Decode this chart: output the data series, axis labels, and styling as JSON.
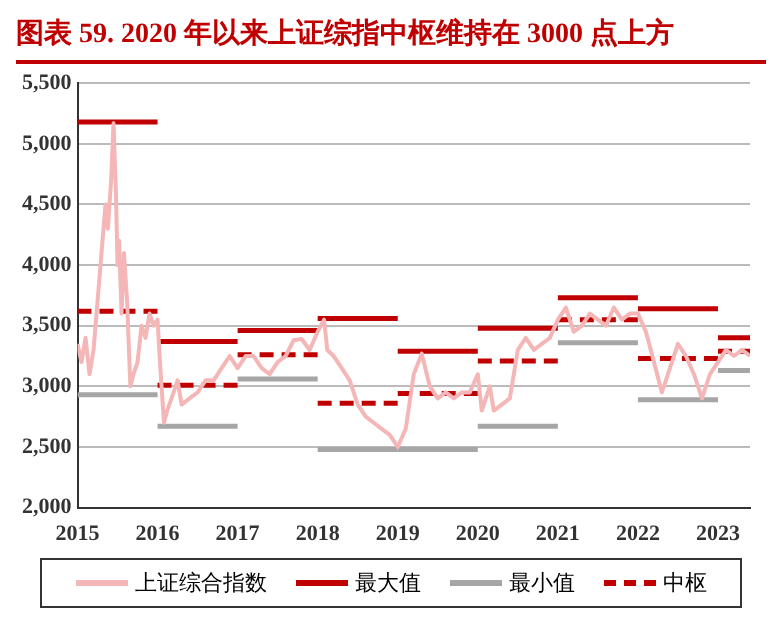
{
  "chart_data": {
    "type": "line",
    "title": "图表 59. 2020 年以来上证综指中枢维持在 3000 点上方",
    "xlim": [
      2015,
      2023.4
    ],
    "xticks": [
      2015,
      2016,
      2017,
      2018,
      2019,
      2020,
      2021,
      2022,
      2023
    ],
    "ylim": [
      2000,
      5500
    ],
    "yticks": [
      {
        "value": 2000,
        "label": "2,000"
      },
      {
        "value": 2500,
        "label": "2,500"
      },
      {
        "value": 3000,
        "label": "3,000"
      },
      {
        "value": 3500,
        "label": "3,500"
      },
      {
        "value": 4000,
        "label": "4,000"
      },
      {
        "value": 4500,
        "label": "4,500"
      },
      {
        "value": 5000,
        "label": "5,000"
      },
      {
        "value": 5500,
        "label": "5,500"
      }
    ],
    "grid": "y",
    "legend": "bottom",
    "marker": "none",
    "series": [
      {
        "name": "上证综合指数",
        "color": "#f4b6b6",
        "line_style": "solid",
        "x": [
          2015,
          2015.05,
          2015.1,
          2015.15,
          2015.2,
          2015.25,
          2015.3,
          2015.35,
          2015.38,
          2015.42,
          2015.45,
          2015.48,
          2015.5,
          2015.52,
          2015.55,
          2015.58,
          2015.62,
          2015.66,
          2015.7,
          2015.75,
          2015.8,
          2015.85,
          2015.9,
          2015.95,
          2016,
          2016.03,
          2016.08,
          2016.12,
          2016.2,
          2016.25,
          2016.3,
          2016.4,
          2016.5,
          2016.6,
          2016.7,
          2016.8,
          2016.9,
          2017,
          2017.1,
          2017.2,
          2017.3,
          2017.4,
          2017.5,
          2017.6,
          2017.7,
          2017.8,
          2017.9,
          2018,
          2018.08,
          2018.12,
          2018.2,
          2018.3,
          2018.4,
          2018.5,
          2018.6,
          2018.7,
          2018.8,
          2018.9,
          2019,
          2019.1,
          2019.2,
          2019.3,
          2019.4,
          2019.5,
          2019.6,
          2019.7,
          2019.8,
          2019.9,
          2020,
          2020.05,
          2020.15,
          2020.2,
          2020.3,
          2020.4,
          2020.5,
          2020.6,
          2020.7,
          2020.8,
          2020.9,
          2021,
          2021.1,
          2021.2,
          2021.3,
          2021.4,
          2021.5,
          2021.6,
          2021.7,
          2021.8,
          2021.9,
          2022,
          2022.1,
          2022.2,
          2022.3,
          2022.4,
          2022.5,
          2022.6,
          2022.7,
          2022.8,
          2022.9,
          2023,
          2023.1,
          2023.2,
          2023.3,
          2023.4
        ],
        "values": [
          3350,
          3200,
          3400,
          3100,
          3300,
          3700,
          4100,
          4500,
          4300,
          4700,
          5170,
          4600,
          4000,
          4200,
          3600,
          4100,
          3700,
          3000,
          3100,
          3200,
          3500,
          3400,
          3600,
          3500,
          3550,
          3200,
          2700,
          2800,
          2950,
          3050,
          2850,
          2900,
          2950,
          3050,
          3050,
          3150,
          3250,
          3150,
          3250,
          3250,
          3150,
          3100,
          3200,
          3250,
          3380,
          3390,
          3300,
          3450,
          3550,
          3300,
          3250,
          3150,
          3050,
          2850,
          2750,
          2700,
          2650,
          2600,
          2500,
          2650,
          3100,
          3270,
          3000,
          2900,
          2950,
          2900,
          2950,
          2950,
          3100,
          2800,
          3000,
          2800,
          2850,
          2900,
          3300,
          3400,
          3300,
          3350,
          3400,
          3550,
          3650,
          3450,
          3500,
          3600,
          3550,
          3500,
          3650,
          3550,
          3600,
          3600,
          3450,
          3200,
          2950,
          3150,
          3350,
          3250,
          3100,
          2900,
          3100,
          3200,
          3300,
          3250,
          3300,
          3250
        ]
      },
      {
        "name": "最大值",
        "color": "#c00000",
        "line_style": "solid",
        "x": [
          2015,
          2016,
          2016,
          2017,
          2017,
          2018,
          2018,
          2019,
          2019,
          2020,
          2020,
          2021,
          2021,
          2022,
          2022,
          2023,
          2023,
          2023.4
        ],
        "values": [
          5180,
          5180,
          3370,
          3370,
          3460,
          3460,
          3560,
          3560,
          3290,
          3290,
          3480,
          3480,
          3730,
          3730,
          3640,
          3640,
          3400,
          3400
        ]
      },
      {
        "name": "最小值",
        "color": "#a6a6a6",
        "line_style": "solid",
        "x": [
          2015,
          2016,
          2016,
          2017,
          2017,
          2018,
          2018,
          2019,
          2019,
          2020,
          2020,
          2021,
          2021,
          2022,
          2022,
          2023,
          2023,
          2023.4
        ],
        "values": [
          2930,
          2930,
          2670,
          2670,
          3060,
          3060,
          2480,
          2480,
          2480,
          2480,
          2670,
          2670,
          3360,
          3360,
          2890,
          2890,
          3130,
          3130
        ]
      },
      {
        "name": "中枢",
        "color": "#c00000",
        "line_style": "dashed",
        "x": [
          2015,
          2016,
          2016,
          2017,
          2017,
          2018,
          2018,
          2019,
          2019,
          2020,
          2020,
          2021,
          2021,
          2022,
          2022,
          2023,
          2023,
          2023.4
        ],
        "values": [
          3620,
          3620,
          3010,
          3010,
          3260,
          3260,
          2860,
          2860,
          2940,
          2940,
          3210,
          3210,
          3550,
          3550,
          3230,
          3230,
          3290,
          3290
        ]
      }
    ]
  }
}
